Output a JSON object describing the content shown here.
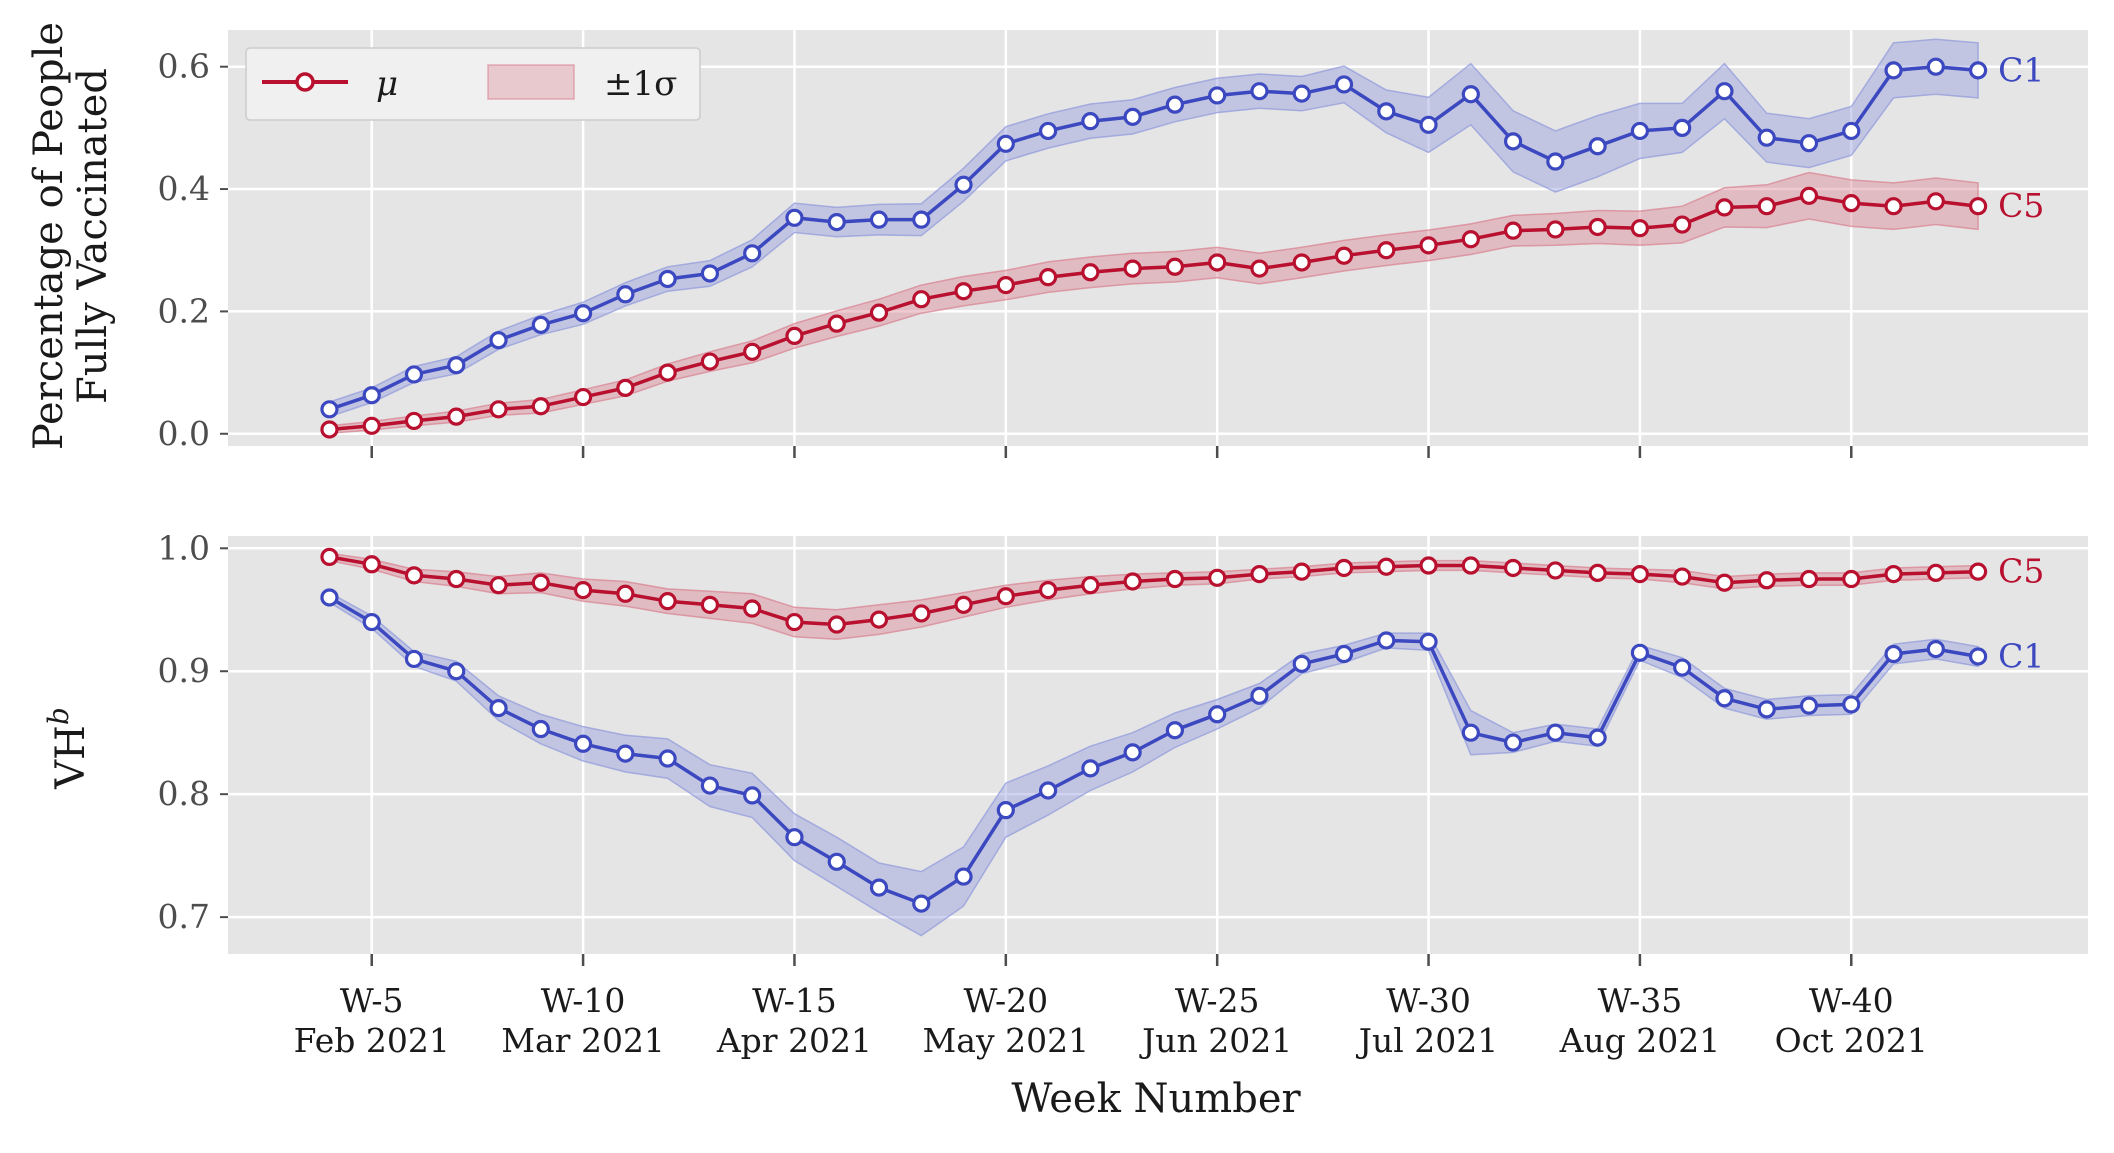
{
  "chart_data": [
    {
      "type": "line",
      "ylabel": [
        "Percentage of People",
        "Fully Vaccinated"
      ],
      "ylim": [
        -0.02,
        0.66
      ],
      "yticks": [
        "0.0",
        "0.2",
        "0.4",
        "0.6"
      ],
      "ytick_values": [
        0.0,
        0.2,
        0.4,
        0.6
      ],
      "grid": true,
      "legend": {
        "position": "top-left",
        "entries": [
          {
            "label": "μ",
            "kind": "line-marker"
          },
          {
            "label": "±1σ",
            "kind": "band"
          }
        ]
      },
      "x": [
        4,
        5,
        6,
        7,
        8,
        9,
        10,
        11,
        12,
        13,
        14,
        15,
        16,
        17,
        18,
        19,
        20,
        21,
        22,
        23,
        24,
        25,
        26,
        27,
        28,
        29,
        30,
        31,
        32,
        33,
        34,
        35,
        36,
        37,
        38,
        39,
        40,
        41,
        42,
        43
      ],
      "series": [
        {
          "name": "C1",
          "color": "#3b48c0",
          "band_color": "#8f98dc",
          "values": [
            0.04,
            0.063,
            0.097,
            0.112,
            0.153,
            0.178,
            0.197,
            0.228,
            0.253,
            0.262,
            0.295,
            0.353,
            0.346,
            0.35,
            0.35,
            0.407,
            0.474,
            0.495,
            0.511,
            0.518,
            0.538,
            0.553,
            0.56,
            0.556,
            0.571,
            0.527,
            0.505,
            0.555,
            0.478,
            0.445,
            0.47,
            0.495,
            0.5,
            0.56,
            0.484,
            0.475,
            0.495,
            0.594,
            0.6,
            0.594
          ],
          "sigma": [
            0.012,
            0.012,
            0.013,
            0.014,
            0.015,
            0.016,
            0.018,
            0.019,
            0.02,
            0.021,
            0.022,
            0.024,
            0.024,
            0.025,
            0.026,
            0.027,
            0.028,
            0.028,
            0.028,
            0.028,
            0.028,
            0.028,
            0.028,
            0.028,
            0.03,
            0.035,
            0.045,
            0.05,
            0.05,
            0.05,
            0.05,
            0.045,
            0.04,
            0.045,
            0.04,
            0.04,
            0.04,
            0.045,
            0.045,
            0.045
          ]
        },
        {
          "name": "C5",
          "color": "#b8102e",
          "band_color": "#d98090",
          "values": [
            0.007,
            0.013,
            0.021,
            0.028,
            0.04,
            0.045,
            0.06,
            0.075,
            0.1,
            0.118,
            0.134,
            0.16,
            0.18,
            0.198,
            0.22,
            0.233,
            0.243,
            0.256,
            0.264,
            0.27,
            0.273,
            0.28,
            0.27,
            0.28,
            0.291,
            0.3,
            0.308,
            0.318,
            0.332,
            0.334,
            0.338,
            0.336,
            0.342,
            0.37,
            0.372,
            0.389,
            0.377,
            0.372,
            0.38,
            0.372
          ],
          "sigma": [
            0.006,
            0.007,
            0.008,
            0.009,
            0.01,
            0.011,
            0.012,
            0.013,
            0.014,
            0.016,
            0.018,
            0.02,
            0.021,
            0.022,
            0.023,
            0.024,
            0.024,
            0.025,
            0.025,
            0.025,
            0.025,
            0.025,
            0.025,
            0.025,
            0.025,
            0.025,
            0.025,
            0.025,
            0.025,
            0.026,
            0.027,
            0.028,
            0.03,
            0.032,
            0.035,
            0.038,
            0.038,
            0.038,
            0.038,
            0.038
          ]
        }
      ]
    },
    {
      "type": "line",
      "ylabel": "VH",
      "ylabel_superscript": "b",
      "ylim": [
        0.67,
        1.01
      ],
      "yticks": [
        "0.7",
        "0.8",
        "0.9",
        "1.0"
      ],
      "ytick_values": [
        0.7,
        0.8,
        0.9,
        1.0
      ],
      "grid": true,
      "xlabel": "Week Number",
      "xticks": [
        {
          "value": 5,
          "week": "W-5",
          "month": "Feb 2021"
        },
        {
          "value": 10,
          "week": "W-10",
          "month": "Mar 2021"
        },
        {
          "value": 15,
          "week": "W-15",
          "month": "Apr 2021"
        },
        {
          "value": 20,
          "week": "W-20",
          "month": "May 2021"
        },
        {
          "value": 25,
          "week": "W-25",
          "month": "Jun 2021"
        },
        {
          "value": 30,
          "week": "W-30",
          "month": "Jul 2021"
        },
        {
          "value": 35,
          "week": "W-35",
          "month": "Aug 2021"
        },
        {
          "value": 40,
          "week": "W-40",
          "month": "Oct 2021"
        }
      ],
      "x": [
        4,
        5,
        6,
        7,
        8,
        9,
        10,
        11,
        12,
        13,
        14,
        15,
        16,
        17,
        18,
        19,
        20,
        21,
        22,
        23,
        24,
        25,
        26,
        27,
        28,
        29,
        30,
        31,
        32,
        33,
        34,
        35,
        36,
        37,
        38,
        39,
        40,
        41,
        42,
        43
      ],
      "series": [
        {
          "name": "C5",
          "color": "#b8102e",
          "band_color": "#d98090",
          "values": [
            0.993,
            0.987,
            0.978,
            0.975,
            0.97,
            0.972,
            0.966,
            0.963,
            0.957,
            0.954,
            0.951,
            0.94,
            0.938,
            0.942,
            0.947,
            0.954,
            0.961,
            0.966,
            0.97,
            0.973,
            0.975,
            0.976,
            0.979,
            0.981,
            0.984,
            0.985,
            0.986,
            0.986,
            0.984,
            0.982,
            0.98,
            0.979,
            0.977,
            0.972,
            0.974,
            0.975,
            0.975,
            0.979,
            0.98,
            0.981
          ],
          "sigma": [
            0.003,
            0.004,
            0.005,
            0.006,
            0.007,
            0.008,
            0.009,
            0.01,
            0.01,
            0.011,
            0.012,
            0.012,
            0.012,
            0.012,
            0.011,
            0.01,
            0.009,
            0.008,
            0.007,
            0.006,
            0.005,
            0.005,
            0.004,
            0.004,
            0.004,
            0.004,
            0.004,
            0.004,
            0.004,
            0.004,
            0.004,
            0.004,
            0.005,
            0.005,
            0.005,
            0.005,
            0.005,
            0.005,
            0.005,
            0.005
          ]
        },
        {
          "name": "C1",
          "color": "#3b48c0",
          "band_color": "#8f98dc",
          "values": [
            0.96,
            0.94,
            0.91,
            0.9,
            0.87,
            0.853,
            0.841,
            0.833,
            0.829,
            0.807,
            0.799,
            0.765,
            0.745,
            0.724,
            0.711,
            0.733,
            0.787,
            0.803,
            0.821,
            0.834,
            0.852,
            0.865,
            0.88,
            0.906,
            0.914,
            0.925,
            0.924,
            0.85,
            0.842,
            0.85,
            0.846,
            0.915,
            0.903,
            0.878,
            0.869,
            0.872,
            0.873,
            0.914,
            0.918,
            0.912
          ],
          "sigma": [
            0.004,
            0.005,
            0.006,
            0.008,
            0.01,
            0.012,
            0.014,
            0.015,
            0.016,
            0.017,
            0.018,
            0.019,
            0.02,
            0.02,
            0.026,
            0.024,
            0.022,
            0.02,
            0.018,
            0.016,
            0.014,
            0.012,
            0.01,
            0.008,
            0.007,
            0.006,
            0.007,
            0.018,
            0.008,
            0.007,
            0.007,
            0.006,
            0.008,
            0.008,
            0.008,
            0.008,
            0.008,
            0.008,
            0.008,
            0.008
          ]
        }
      ]
    }
  ]
}
